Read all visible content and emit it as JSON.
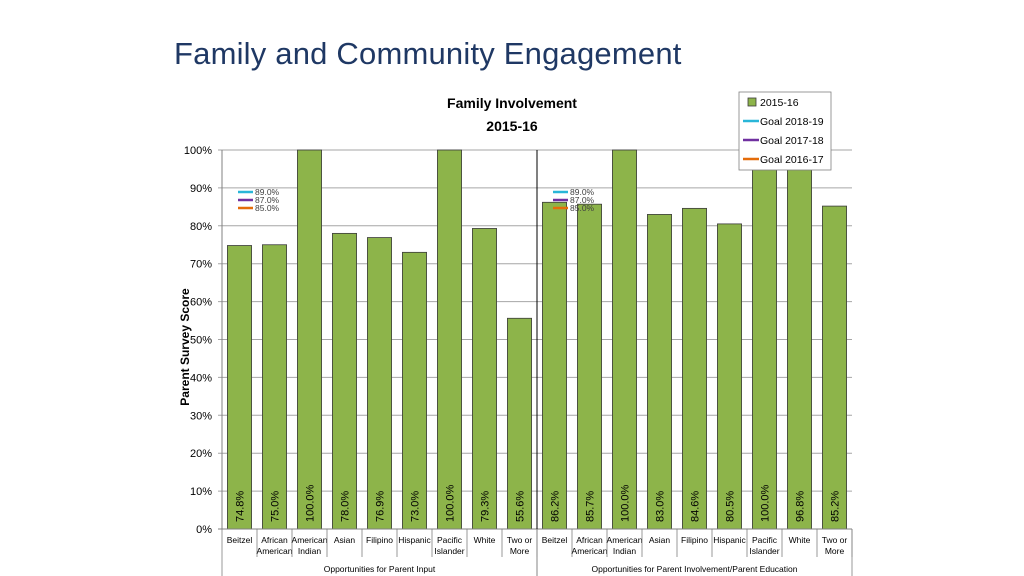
{
  "slide": {
    "title": "Family and Community Engagement"
  },
  "chart_data": {
    "type": "bar",
    "title": "Family Involvement",
    "subtitle": "2015-16",
    "ylabel": "Parent Survey Score",
    "ylim": [
      0,
      100
    ],
    "yticks": [
      "0%",
      "10%",
      "20%",
      "30%",
      "40%",
      "50%",
      "60%",
      "70%",
      "80%",
      "90%",
      "100%"
    ],
    "groups": [
      {
        "name": "Opportunities for Parent Input",
        "categories": [
          [
            "Beitzel"
          ],
          [
            "African",
            "American"
          ],
          [
            "American",
            "Indian"
          ],
          [
            "Asian"
          ],
          [
            "Filipino"
          ],
          [
            "Hispanic"
          ],
          [
            "Pacific",
            "Islander"
          ],
          [
            "White"
          ],
          [
            "Two or",
            "More"
          ]
        ],
        "values": [
          74.8,
          75.0,
          100.0,
          78.0,
          76.9,
          73.0,
          100.0,
          79.3,
          55.6
        ],
        "labels": [
          "74.8%",
          "75.0%",
          "100.0%",
          "78.0%",
          "76.9%",
          "73.0%",
          "100.0%",
          "79.3%",
          "55.6%"
        ],
        "goal_labels": [
          "89.0%",
          "87.0%",
          "85.0%"
        ]
      },
      {
        "name": "Opportunities for Parent Involvement/Parent Education",
        "categories": [
          [
            "Beitzel"
          ],
          [
            "African",
            "American"
          ],
          [
            "American",
            "Indian"
          ],
          [
            "Asian"
          ],
          [
            "Filipino"
          ],
          [
            "Hispanic"
          ],
          [
            "Pacific",
            "Islander"
          ],
          [
            "White"
          ],
          [
            "Two or",
            "More"
          ]
        ],
        "values": [
          86.2,
          85.7,
          100.0,
          83.0,
          84.6,
          80.5,
          100.0,
          96.8,
          85.2
        ],
        "labels": [
          "86.2%",
          "85.7%",
          "100.0%",
          "83.0%",
          "84.6%",
          "80.5%",
          "100.0%",
          "96.8%",
          "85.2%"
        ],
        "goal_labels": [
          "89.0%",
          "87.0%",
          "85.0%"
        ]
      }
    ],
    "goals": [
      {
        "name": "Goal 2018-19",
        "value": 89.0,
        "color": "#29b6d8"
      },
      {
        "name": "Goal 2017-18",
        "value": 87.0,
        "color": "#7030a0"
      },
      {
        "name": "Goal 2016-17",
        "value": 85.0,
        "color": "#e46c0a"
      }
    ],
    "legend": [
      {
        "name": "2015-16",
        "kind": "box",
        "color": "#8db44a"
      },
      {
        "name": "Goal 2018-19",
        "kind": "line",
        "color": "#29b6d8"
      },
      {
        "name": "Goal 2017-18",
        "kind": "line",
        "color": "#7030a0"
      },
      {
        "name": "Goal 2016-17",
        "kind": "line",
        "color": "#e46c0a"
      }
    ],
    "bar_color": "#8db44a",
    "grid": true,
    "legend_position": "top-right"
  }
}
